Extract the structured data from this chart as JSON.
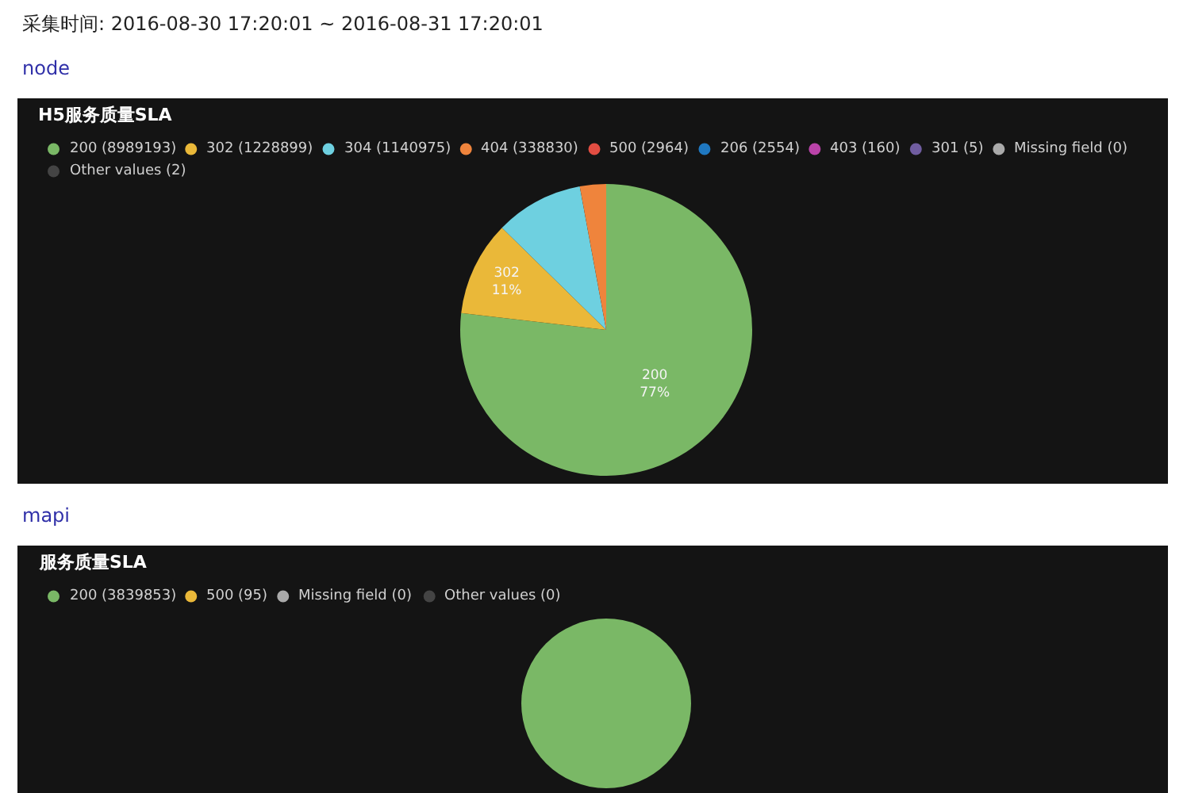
{
  "chart_data": [
    {
      "type": "pie",
      "title": "H5服务质量SLA",
      "annotations": [
        "采集时间: 2016-08-30 17:20:01 ~ 2016-08-31 17:20:01",
        "node"
      ],
      "categories": [
        "200 (8989193)",
        "302 (1228899)",
        "304 (1140975)",
        "404 (338830)",
        "500 (2964)",
        "206 (2554)",
        "403 (160)",
        "301 (5)",
        "Missing field (0)",
        "Other values (2)"
      ],
      "values": [
        76.8,
        10.5,
        9.75,
        2.9,
        0,
        0,
        0,
        0,
        0,
        0
      ],
      "colors": [
        "#7ab866",
        "#eab839",
        "#6ed0e0",
        "#ef843c",
        "#e24d42",
        "#1f78c1",
        "#ba43a9",
        "#705da0",
        "#aaaaaa",
        "#444444"
      ],
      "value_labels": [
        "200\n77%",
        "302\n11%",
        null,
        null,
        null,
        null,
        null,
        null,
        null,
        null
      ],
      "legend": "top left"
    },
    {
      "type": "pie",
      "title": "服务质量SLA",
      "annotations": [
        "mapi"
      ],
      "categories": [
        "200 (3839853)",
        "500 (95)",
        "Missing field (0)",
        "Other values (0)"
      ],
      "values": [
        100,
        0,
        0,
        0
      ],
      "colors": [
        "#7ab866",
        "#eab839",
        "#aaaaaa",
        "#444444"
      ],
      "legend": "top left"
    }
  ]
}
